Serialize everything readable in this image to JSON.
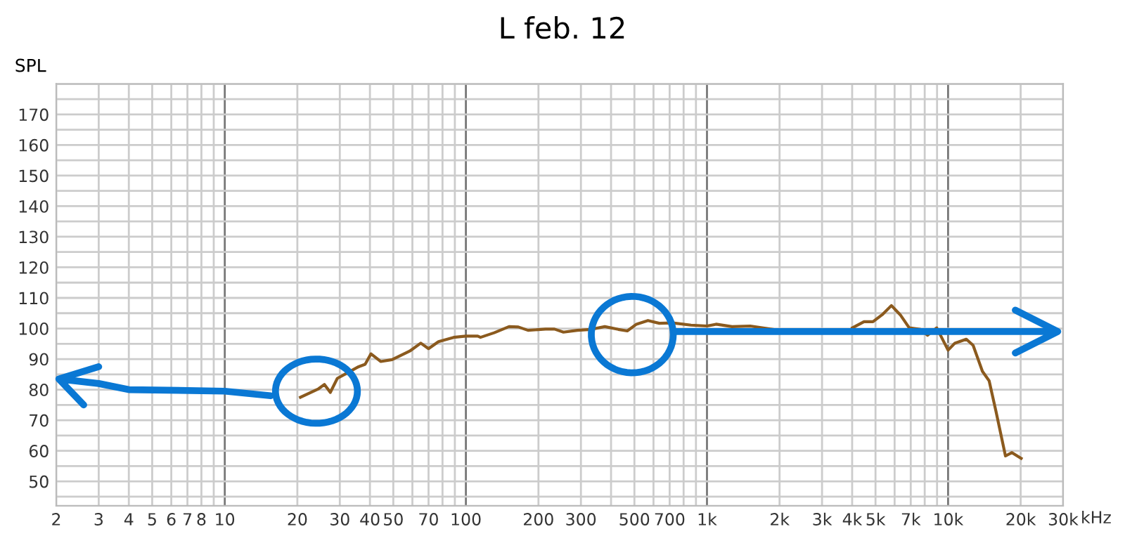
{
  "chart_data": {
    "type": "line",
    "title": "L feb. 12",
    "ylabel": "SPL",
    "xlabel": "kHz",
    "log": "x",
    "grid": true,
    "marker": "none",
    "line_style": "solid",
    "xlim": [
      2,
      30000
    ],
    "ylim": [
      42,
      180
    ],
    "xticks": [
      2,
      3,
      4,
      5,
      6,
      7,
      8,
      {
        "value": 9,
        "label": null
      },
      10,
      20,
      30,
      40,
      50,
      {
        "value": 60,
        "label": null
      },
      70,
      {
        "value": 80,
        "label": null
      },
      {
        "value": 90,
        "label": null
      },
      100,
      200,
      300,
      {
        "value": 400,
        "label": null
      },
      500,
      {
        "value": 600,
        "label": null
      },
      700,
      {
        "value": 800,
        "label": null
      },
      {
        "value": 900,
        "label": null
      },
      {
        "value": 1000,
        "label": "1k"
      },
      {
        "value": 2000,
        "label": "2k"
      },
      {
        "value": 3000,
        "label": "3k"
      },
      {
        "value": 4000,
        "label": "4k"
      },
      {
        "value": 5000,
        "label": "5k"
      },
      {
        "value": 6000,
        "label": null
      },
      {
        "value": 7000,
        "label": "7k"
      },
      {
        "value": 8000,
        "label": null
      },
      {
        "value": 9000,
        "label": null
      },
      {
        "value": 10000,
        "label": "10k"
      },
      {
        "value": 20000,
        "label": "20k"
      },
      {
        "value": 30000,
        "label": "30k"
      }
    ],
    "yticks": [
      {
        "value": 45,
        "label": null
      },
      50,
      {
        "value": 55,
        "label": null
      },
      60,
      {
        "value": 65,
        "label": null
      },
      70,
      {
        "value": 75,
        "label": null
      },
      80,
      {
        "value": 85,
        "label": null
      },
      90,
      {
        "value": 95,
        "label": null
      },
      100,
      {
        "value": 105,
        "label": null
      },
      110,
      {
        "value": 115,
        "label": null
      },
      120,
      {
        "value": 125,
        "label": null
      },
      130,
      {
        "value": 135,
        "label": null
      },
      140,
      {
        "value": 145,
        "label": null
      },
      150,
      {
        "value": 155,
        "label": null
      },
      160,
      {
        "value": 165,
        "label": null
      },
      170,
      {
        "value": 175,
        "label": null
      },
      {
        "value": 180,
        "label": null
      }
    ],
    "series": [
      {
        "color": "#8b5a1e",
        "x": [
          20.6,
          24.5,
          25.9,
          27.4,
          29.3,
          31.8,
          35.9,
          38.2,
          40.4,
          44.4,
          49.4,
          58.5,
          65,
          70,
          77,
          89,
          100,
          112,
          115,
          131,
          151,
          165,
          181,
          214,
          233,
          254,
          290,
          330,
          377,
          429,
          467,
          510,
          569,
          634,
          722,
          859,
          1000,
          1091,
          1270,
          1511,
          1877,
          2440,
          3450,
          4010,
          4480,
          4880,
          5330,
          5820,
          6330,
          6900,
          7700,
          8220,
          8970,
          10000,
          10670,
          11900,
          12700,
          13880,
          14800,
          15800,
          17300,
          18400,
          20100
        ],
        "values": [
          77.5,
          80.3,
          81.7,
          79.1,
          83.7,
          85.2,
          87.5,
          88.3,
          91.7,
          89.2,
          89.8,
          92.6,
          95.2,
          93.4,
          95.7,
          97.1,
          97.5,
          97.5,
          97.1,
          98.6,
          100.6,
          100.5,
          99.4,
          99.8,
          99.8,
          98.8,
          99.4,
          99.7,
          100.6,
          99.7,
          99.2,
          101.4,
          102.6,
          101.7,
          101.8,
          101.1,
          100.8,
          101.4,
          100.6,
          100.8,
          99.7,
          null,
          null,
          100.2,
          102.2,
          102.2,
          104.5,
          107.5,
          104.5,
          100.2,
          99.7,
          97.8,
          100.2,
          92.9,
          95.2,
          96.5,
          94.5,
          86,
          82.9,
          72.9,
          58.3,
          59.4,
          57.5
        ]
      }
    ]
  }
}
